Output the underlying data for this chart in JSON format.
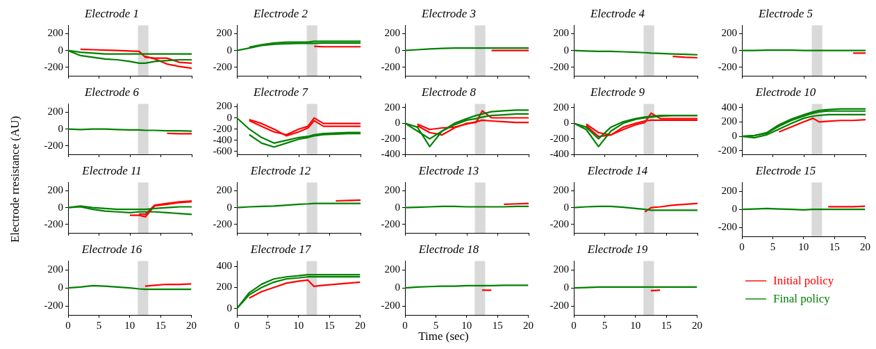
{
  "chart_data": [
    {
      "type": "line",
      "title": "Electrode 1",
      "x": [
        0,
        2,
        4,
        6,
        8,
        10,
        11.5,
        12.5,
        14,
        16,
        18,
        20
      ],
      "xlim": [
        0,
        20
      ],
      "xticks": [
        0,
        5,
        10,
        15,
        20
      ],
      "ylim": [
        -300,
        300
      ],
      "yticks": [
        -200,
        0,
        200
      ],
      "tick_labels": "y",
      "marker": "none",
      "bands": [
        {
          "axis": "x",
          "from": 11.3,
          "to": 13,
          "color": "#d9d9d9"
        }
      ],
      "series": [
        {
          "color": "#ff0000",
          "values": [
            null,
            null,
            null,
            null,
            null,
            null,
            null,
            -70,
            -100,
            -160,
            -190,
            -210
          ]
        },
        {
          "color": "#ff0000",
          "values": [
            null,
            15,
            10,
            5,
            0,
            -5,
            -10,
            -80,
            -90,
            -90,
            -140,
            -150
          ]
        },
        {
          "color": "#008000",
          "values": [
            0,
            -60,
            -80,
            -100,
            -110,
            -130,
            -150,
            -150,
            -130,
            -120,
            -110,
            -110
          ]
        },
        {
          "color": "#008000",
          "values": [
            0,
            -20,
            -30,
            -40,
            -40,
            -40,
            -40,
            -40,
            -40,
            -40,
            -40,
            -40
          ]
        }
      ]
    },
    {
      "type": "line",
      "title": "Electrode 2",
      "x": [
        0,
        2,
        4,
        6,
        8,
        10,
        11.5,
        12.5,
        14,
        16,
        18,
        20
      ],
      "xlim": [
        0,
        20
      ],
      "xticks": [
        0,
        5,
        10,
        15,
        20
      ],
      "ylim": [
        -300,
        300
      ],
      "yticks": [
        -200,
        0,
        200
      ],
      "tick_labels": "y",
      "marker": "none",
      "bands": [
        {
          "axis": "x",
          "from": 11.3,
          "to": 13,
          "color": "#d9d9d9"
        }
      ],
      "series": [
        {
          "color": "#ff0000",
          "values": [
            null,
            null,
            null,
            null,
            null,
            null,
            null,
            50,
            45,
            45,
            45,
            45
          ]
        },
        {
          "color": "#008000",
          "values": [
            0,
            30,
            60,
            75,
            80,
            85,
            85,
            85,
            90,
            90,
            90,
            90
          ]
        },
        {
          "color": "#008000",
          "values": [
            null,
            40,
            70,
            90,
            100,
            100,
            100,
            110,
            110,
            110,
            110,
            110
          ]
        }
      ]
    },
    {
      "type": "line",
      "title": "Electrode 3",
      "x": [
        0,
        2,
        4,
        6,
        8,
        10,
        11.5,
        12.5,
        14,
        16,
        18,
        20
      ],
      "xlim": [
        0,
        20
      ],
      "xticks": [
        0,
        5,
        10,
        15,
        20
      ],
      "ylim": [
        -300,
        300
      ],
      "yticks": [
        -200,
        0,
        200
      ],
      "tick_labels": "y",
      "marker": "none",
      "bands": [
        {
          "axis": "x",
          "from": 11.3,
          "to": 13,
          "color": "#d9d9d9"
        }
      ],
      "series": [
        {
          "color": "#ff0000",
          "values": [
            null,
            null,
            null,
            null,
            null,
            null,
            null,
            null,
            0,
            0,
            0,
            0
          ]
        },
        {
          "color": "#008000",
          "values": [
            0,
            10,
            20,
            25,
            30,
            30,
            30,
            30,
            30,
            30,
            30,
            30
          ]
        }
      ]
    },
    {
      "type": "line",
      "title": "Electrode 4",
      "x": [
        0,
        2,
        4,
        6,
        8,
        10,
        11.5,
        12.5,
        14,
        16,
        18,
        20
      ],
      "xlim": [
        0,
        20
      ],
      "xticks": [
        0,
        5,
        10,
        15,
        20
      ],
      "ylim": [
        -300,
        300
      ],
      "yticks": [
        -200,
        0,
        200
      ],
      "tick_labels": "y",
      "marker": "none",
      "bands": [
        {
          "axis": "x",
          "from": 11.3,
          "to": 13,
          "color": "#d9d9d9"
        }
      ],
      "series": [
        {
          "color": "#ff0000",
          "values": [
            null,
            null,
            null,
            null,
            null,
            null,
            null,
            null,
            null,
            -70,
            -80,
            -85
          ]
        },
        {
          "color": "#008000",
          "values": [
            0,
            -5,
            -10,
            -10,
            -15,
            -20,
            -25,
            -30,
            -35,
            -40,
            -45,
            -50
          ]
        }
      ]
    },
    {
      "type": "line",
      "title": "Electrode 5",
      "x": [
        0,
        2,
        4,
        6,
        8,
        10,
        11.5,
        12.5,
        14,
        16,
        18,
        20
      ],
      "xlim": [
        0,
        20
      ],
      "xticks": [
        0,
        5,
        10,
        15,
        20
      ],
      "ylim": [
        -300,
        300
      ],
      "yticks": [
        -200,
        0,
        200
      ],
      "tick_labels": "y",
      "marker": "none",
      "bands": [
        {
          "axis": "x",
          "from": 11.3,
          "to": 13,
          "color": "#d9d9d9"
        }
      ],
      "series": [
        {
          "color": "#ff0000",
          "values": [
            null,
            null,
            null,
            null,
            null,
            null,
            null,
            null,
            null,
            null,
            -30,
            -30
          ]
        },
        {
          "color": "#008000",
          "values": [
            0,
            0,
            5,
            5,
            5,
            0,
            0,
            0,
            0,
            0,
            0,
            0
          ]
        }
      ]
    },
    {
      "type": "line",
      "title": "Electrode 6",
      "x": [
        0,
        2,
        4,
        6,
        8,
        10,
        11.5,
        12.5,
        14,
        16,
        18,
        20
      ],
      "xlim": [
        0,
        20
      ],
      "xticks": [
        0,
        5,
        10,
        15,
        20
      ],
      "ylim": [
        -300,
        300
      ],
      "yticks": [
        -200,
        0,
        200
      ],
      "tick_labels": "y",
      "marker": "none",
      "bands": [
        {
          "axis": "x",
          "from": 11.3,
          "to": 13,
          "color": "#d9d9d9"
        }
      ],
      "series": [
        {
          "color": "#ff0000",
          "values": [
            null,
            null,
            null,
            null,
            null,
            null,
            null,
            null,
            null,
            -50,
            -55,
            -55
          ]
        },
        {
          "color": "#008000",
          "values": [
            0,
            -5,
            0,
            0,
            -5,
            -10,
            -10,
            -15,
            -15,
            -20,
            -20,
            -25
          ]
        }
      ]
    },
    {
      "type": "line",
      "title": "Electrode 7",
      "x": [
        0,
        2,
        4,
        6,
        8,
        10,
        11.5,
        12.5,
        14,
        16,
        18,
        20
      ],
      "xlim": [
        0,
        20
      ],
      "xticks": [
        0,
        5,
        10,
        15,
        20
      ],
      "ylim": [
        -650,
        250
      ],
      "yticks": [
        -600,
        -400,
        -200,
        0,
        200
      ],
      "tick_labels": "y",
      "marker": "none",
      "bands": [
        {
          "axis": "x",
          "from": 11.3,
          "to": 13,
          "color": "#d9d9d9"
        }
      ],
      "series": [
        {
          "color": "#ff0000",
          "values": [
            null,
            -50,
            -150,
            -250,
            -300,
            -200,
            -150,
            0,
            -100,
            -100,
            -100,
            -100
          ]
        },
        {
          "color": "#ff0000",
          "values": [
            null,
            -30,
            -100,
            -200,
            -320,
            -250,
            -180,
            -50,
            -150,
            -150,
            -150,
            -150
          ]
        },
        {
          "color": "#008000",
          "values": [
            0,
            -200,
            -350,
            -450,
            -400,
            -350,
            -330,
            -300,
            -280,
            -270,
            -260,
            -260
          ]
        },
        {
          "color": "#008000",
          "values": [
            null,
            -300,
            -450,
            -520,
            -450,
            -380,
            -350,
            -320,
            -300,
            -290,
            -280,
            -280
          ]
        }
      ]
    },
    {
      "type": "line",
      "title": "Electrode 8",
      "x": [
        0,
        2,
        4,
        6,
        8,
        10,
        11.5,
        12.5,
        14,
        16,
        18,
        20
      ],
      "xlim": [
        0,
        20
      ],
      "xticks": [
        0,
        5,
        10,
        15,
        20
      ],
      "ylim": [
        -400,
        250
      ],
      "yticks": [
        -400,
        -200,
        0,
        200
      ],
      "tick_labels": "y",
      "marker": "none",
      "bands": [
        {
          "axis": "x",
          "from": 11.3,
          "to": 13,
          "color": "#d9d9d9"
        }
      ],
      "series": [
        {
          "color": "#ff0000",
          "values": [
            null,
            -10,
            -80,
            -60,
            -50,
            -10,
            20,
            40,
            30,
            20,
            10,
            10
          ]
        },
        {
          "color": "#ff0000",
          "values": [
            null,
            -30,
            -120,
            -150,
            -60,
            0,
            10,
            160,
            70,
            70,
            70,
            70
          ]
        },
        {
          "color": "#008000",
          "values": [
            0,
            -100,
            -200,
            -100,
            -20,
            40,
            60,
            80,
            100,
            110,
            120,
            120
          ]
        },
        {
          "color": "#008000",
          "values": [
            0,
            -50,
            -300,
            -100,
            0,
            60,
            100,
            120,
            150,
            160,
            170,
            170
          ]
        }
      ]
    },
    {
      "type": "line",
      "title": "Electrode 9",
      "x": [
        0,
        2,
        4,
        6,
        8,
        10,
        11.5,
        12.5,
        14,
        16,
        18,
        20
      ],
      "xlim": [
        0,
        20
      ],
      "xticks": [
        0,
        5,
        10,
        15,
        20
      ],
      "ylim": [
        -400,
        250
      ],
      "yticks": [
        -400,
        -200,
        0,
        200
      ],
      "tick_labels": "y",
      "marker": "none",
      "bands": [
        {
          "axis": "x",
          "from": 11.3,
          "to": 13,
          "color": "#d9d9d9"
        }
      ],
      "series": [
        {
          "color": "#ff0000",
          "values": [
            null,
            -10,
            -120,
            -150,
            -50,
            0,
            30,
            40,
            40,
            40,
            40,
            40
          ]
        },
        {
          "color": "#ff0000",
          "values": [
            null,
            -30,
            -170,
            -150,
            -80,
            -20,
            10,
            130,
            60,
            60,
            60,
            60
          ]
        },
        {
          "color": "#008000",
          "values": [
            0,
            -80,
            -300,
            -100,
            0,
            50,
            70,
            80,
            90,
            100,
            100,
            100
          ]
        },
        {
          "color": "#008000",
          "values": [
            0,
            -50,
            -200,
            -50,
            20,
            60,
            80,
            90,
            100,
            100,
            100,
            100
          ]
        }
      ]
    },
    {
      "type": "line",
      "title": "Electrode 10",
      "x": [
        0,
        2,
        4,
        6,
        8,
        10,
        11.5,
        12.5,
        14,
        16,
        18,
        20
      ],
      "xlim": [
        0,
        20
      ],
      "xticks": [
        0,
        5,
        10,
        15,
        20
      ],
      "ylim": [
        -250,
        450
      ],
      "yticks": [
        -200,
        0,
        200,
        400
      ],
      "tick_labels": "y",
      "marker": "none",
      "bands": [
        {
          "axis": "x",
          "from": 11.3,
          "to": 13,
          "color": "#d9d9d9"
        }
      ],
      "series": [
        {
          "color": "#ff0000",
          "values": [
            null,
            null,
            null,
            60,
            130,
            200,
            250,
            200,
            210,
            220,
            220,
            230
          ]
        },
        {
          "color": "#008000",
          "values": [
            0,
            10,
            40,
            140,
            220,
            280,
            320,
            340,
            350,
            350,
            350,
            350
          ]
        },
        {
          "color": "#008000",
          "values": [
            0,
            -20,
            20,
            100,
            180,
            250,
            280,
            290,
            300,
            300,
            300,
            300
          ]
        },
        {
          "color": "#008000",
          "values": [
            0,
            10,
            50,
            160,
            240,
            300,
            340,
            360,
            370,
            380,
            380,
            380
          ]
        }
      ]
    },
    {
      "type": "line",
      "title": "Electrode 11",
      "x": [
        0,
        2,
        4,
        6,
        8,
        10,
        11.5,
        12.5,
        14,
        16,
        18,
        20
      ],
      "xlim": [
        0,
        20
      ],
      "xticks": [
        0,
        5,
        10,
        15,
        20
      ],
      "ylim": [
        -300,
        300
      ],
      "yticks": [
        -200,
        0,
        200
      ],
      "tick_labels": "y",
      "marker": "none",
      "bands": [
        {
          "axis": "x",
          "from": 11.3,
          "to": 13,
          "color": "#d9d9d9"
        }
      ],
      "series": [
        {
          "color": "#ff0000",
          "values": [
            null,
            null,
            null,
            null,
            null,
            -90,
            -90,
            -110,
            20,
            40,
            60,
            70
          ]
        },
        {
          "color": "#ff0000",
          "values": [
            null,
            null,
            null,
            null,
            null,
            null,
            -75,
            -80,
            30,
            50,
            70,
            80
          ]
        },
        {
          "color": "#008000",
          "values": [
            0,
            10,
            -20,
            -40,
            -50,
            -60,
            -50,
            -50,
            -50,
            -60,
            -70,
            -80
          ]
        },
        {
          "color": "#008000",
          "values": [
            0,
            20,
            0,
            -10,
            -20,
            -20,
            -20,
            -20,
            -10,
            0,
            10,
            10
          ]
        }
      ]
    },
    {
      "type": "line",
      "title": "Electrode 12",
      "x": [
        0,
        2,
        4,
        6,
        8,
        10,
        11.5,
        12.5,
        14,
        16,
        18,
        20
      ],
      "xlim": [
        0,
        20
      ],
      "xticks": [
        0,
        5,
        10,
        15,
        20
      ],
      "ylim": [
        -300,
        300
      ],
      "yticks": [
        -200,
        0,
        200
      ],
      "tick_labels": "y",
      "marker": "none",
      "bands": [
        {
          "axis": "x",
          "from": 11.3,
          "to": 13,
          "color": "#d9d9d9"
        }
      ],
      "series": [
        {
          "color": "#ff0000",
          "values": [
            null,
            null,
            null,
            null,
            null,
            null,
            null,
            null,
            null,
            80,
            85,
            90
          ]
        },
        {
          "color": "#008000",
          "values": [
            0,
            10,
            15,
            20,
            30,
            40,
            45,
            50,
            50,
            50,
            50,
            50
          ]
        }
      ]
    },
    {
      "type": "line",
      "title": "Electrode 13",
      "x": [
        0,
        2,
        4,
        6,
        8,
        10,
        11.5,
        12.5,
        14,
        16,
        18,
        20
      ],
      "xlim": [
        0,
        20
      ],
      "xticks": [
        0,
        5,
        10,
        15,
        20
      ],
      "ylim": [
        -300,
        300
      ],
      "yticks": [
        -200,
        0,
        200
      ],
      "tick_labels": "y",
      "marker": "none",
      "bands": [
        {
          "axis": "x",
          "from": 11.3,
          "to": 13,
          "color": "#d9d9d9"
        }
      ],
      "series": [
        {
          "color": "#ff0000",
          "values": [
            null,
            null,
            null,
            null,
            null,
            null,
            null,
            null,
            null,
            40,
            45,
            50
          ]
        },
        {
          "color": "#008000",
          "values": [
            0,
            5,
            10,
            15,
            15,
            10,
            10,
            10,
            10,
            10,
            15,
            15
          ]
        }
      ]
    },
    {
      "type": "line",
      "title": "Electrode 14",
      "x": [
        0,
        2,
        4,
        6,
        8,
        10,
        11.5,
        12.5,
        14,
        16,
        18,
        20
      ],
      "xlim": [
        0,
        20
      ],
      "xticks": [
        0,
        5,
        10,
        15,
        20
      ],
      "ylim": [
        -300,
        300
      ],
      "yticks": [
        -200,
        0,
        200
      ],
      "tick_labels": "y",
      "marker": "none",
      "bands": [
        {
          "axis": "x",
          "from": 11.3,
          "to": 13,
          "color": "#d9d9d9"
        }
      ],
      "series": [
        {
          "color": "#ff0000",
          "values": [
            null,
            null,
            null,
            null,
            null,
            null,
            -50,
            0,
            10,
            30,
            40,
            50
          ]
        },
        {
          "color": "#008000",
          "values": [
            0,
            10,
            15,
            15,
            5,
            -10,
            -20,
            -30,
            -30,
            -30,
            -30,
            -30
          ]
        }
      ]
    },
    {
      "type": "line",
      "title": "Electrode 15",
      "x": [
        0,
        2,
        4,
        6,
        8,
        10,
        11.5,
        12.5,
        14,
        16,
        18,
        20
      ],
      "xlim": [
        0,
        20
      ],
      "xticks": [
        0,
        5,
        10,
        15,
        20
      ],
      "ylim": [
        -300,
        300
      ],
      "yticks": [
        -200,
        0,
        200
      ],
      "marker": "none",
      "bands": [
        {
          "axis": "x",
          "from": 11.3,
          "to": 13,
          "color": "#d9d9d9"
        }
      ],
      "series": [
        {
          "color": "#ff0000",
          "values": [
            null,
            null,
            null,
            null,
            null,
            null,
            null,
            null,
            30,
            30,
            30,
            35
          ]
        },
        {
          "color": "#008000",
          "values": [
            0,
            5,
            10,
            5,
            0,
            -5,
            0,
            0,
            0,
            0,
            0,
            0
          ]
        }
      ]
    },
    {
      "type": "line",
      "title": "Electrode 16",
      "x": [
        0,
        2,
        4,
        6,
        8,
        10,
        11.5,
        12.5,
        14,
        16,
        18,
        20
      ],
      "xlim": [
        0,
        20
      ],
      "xticks": [
        0,
        5,
        10,
        15,
        20
      ],
      "ylim": [
        -300,
        300
      ],
      "yticks": [
        -200,
        0,
        200
      ],
      "marker": "none",
      "ylabel": "Electrode rresistance (AU)",
      "bands": [
        {
          "axis": "x",
          "from": 11.3,
          "to": 13,
          "color": "#d9d9d9"
        }
      ],
      "series": [
        {
          "color": "#ff0000",
          "values": [
            null,
            null,
            null,
            null,
            null,
            null,
            null,
            20,
            30,
            40,
            40,
            45
          ]
        },
        {
          "color": "#008000",
          "values": [
            0,
            10,
            25,
            20,
            10,
            0,
            -10,
            -15,
            -15,
            -15,
            -15,
            -15
          ]
        }
      ]
    },
    {
      "type": "line",
      "title": "Electrode 17",
      "x": [
        0,
        2,
        4,
        6,
        8,
        10,
        11.5,
        12.5,
        14,
        16,
        18,
        20
      ],
      "xlim": [
        0,
        20
      ],
      "xticks": [
        0,
        5,
        10,
        15,
        20
      ],
      "ylim": [
        -60,
        450
      ],
      "yticks": [
        0,
        200,
        400
      ],
      "marker": "none",
      "bands": [
        {
          "axis": "x",
          "from": 11.3,
          "to": 13,
          "color": "#d9d9d9"
        }
      ],
      "series": [
        {
          "color": "#ff0000",
          "values": [
            null,
            100,
            160,
            200,
            240,
            260,
            270,
            210,
            220,
            230,
            240,
            250
          ]
        },
        {
          "color": "#008000",
          "values": [
            0,
            130,
            200,
            250,
            280,
            290,
            300,
            300,
            300,
            300,
            300,
            300
          ]
        },
        {
          "color": "#008000",
          "values": [
            0,
            150,
            230,
            280,
            300,
            310,
            320,
            320,
            320,
            320,
            320,
            320
          ]
        }
      ]
    },
    {
      "type": "line",
      "title": "Electrode 18",
      "x": [
        0,
        2,
        4,
        6,
        8,
        10,
        11.5,
        12.5,
        14,
        16,
        18,
        20
      ],
      "xlim": [
        0,
        20
      ],
      "xticks": [
        0,
        5,
        10,
        15,
        20
      ],
      "ylim": [
        -300,
        300
      ],
      "yticks": [
        -200,
        0,
        200
      ],
      "marker": "none",
      "xlabel": "Time (sec)",
      "bands": [
        {
          "axis": "x",
          "from": 11.3,
          "to": 13,
          "color": "#d9d9d9"
        }
      ],
      "series": [
        {
          "color": "#ff0000",
          "values": [
            null,
            null,
            null,
            null,
            null,
            null,
            null,
            -25,
            -25,
            null,
            null,
            null
          ]
        },
        {
          "color": "#008000",
          "values": [
            0,
            10,
            15,
            20,
            20,
            25,
            25,
            25,
            25,
            30,
            30,
            30
          ]
        }
      ]
    },
    {
      "type": "line",
      "title": "Electrode 19",
      "x": [
        0,
        2,
        4,
        6,
        8,
        10,
        11.5,
        12.5,
        14,
        16,
        18,
        20
      ],
      "xlim": [
        0,
        20
      ],
      "xticks": [
        0,
        5,
        10,
        15,
        20
      ],
      "ylim": [
        -300,
        300
      ],
      "yticks": [
        -200,
        0,
        200
      ],
      "marker": "none",
      "legend": "right",
      "bands": [
        {
          "axis": "x",
          "from": 11.3,
          "to": 13,
          "color": "#d9d9d9"
        }
      ],
      "series": [
        {
          "name": "Initial policy",
          "color": "#ff0000",
          "values": [
            null,
            null,
            null,
            null,
            null,
            null,
            null,
            -30,
            -25,
            null,
            null,
            null
          ]
        },
        {
          "name": "Final policy",
          "color": "#008000",
          "values": [
            0,
            5,
            10,
            10,
            10,
            10,
            10,
            10,
            10,
            10,
            10,
            10
          ]
        }
      ]
    }
  ]
}
